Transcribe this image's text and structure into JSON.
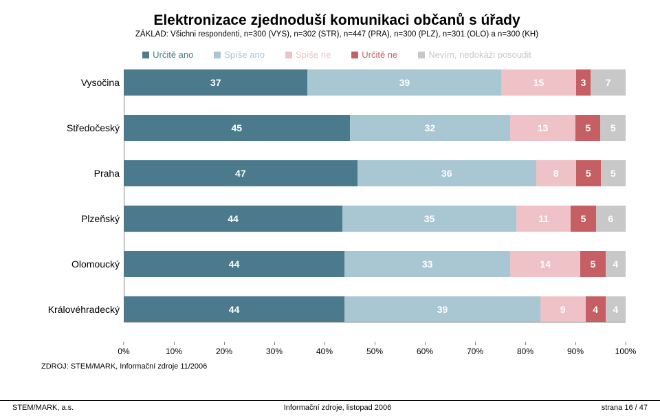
{
  "title": "Elektronizace zjednoduší komunikaci občanů s úřady",
  "subtitle": "ZÁKLAD: Všichni respondenti, n=300 (VYS), n=302 (STR), n=447 (PRA), n=300 (PLZ), n=301 (OLO) a n=300 (KH)",
  "legend": [
    {
      "label": "Určitě ano",
      "color": "#4a7a8c"
    },
    {
      "label": "Spíše ano",
      "color": "#a9c6d3"
    },
    {
      "label": "Spíše ne",
      "color": "#eec2c6"
    },
    {
      "label": "Určitě ne",
      "color": "#c55f63"
    },
    {
      "label": "Nevím, nedokáži posoudit",
      "color": "#c8c8c8"
    }
  ],
  "value_text_color": "#ffffff",
  "value_fontweight": 700,
  "background_color": "#ffffff",
  "axis_color": "#808080",
  "rows": [
    {
      "name": "Vysočina",
      "values": [
        37,
        39,
        15,
        3,
        7
      ],
      "show": [
        true,
        true,
        true,
        true,
        true
      ]
    },
    {
      "name": "Středočeský",
      "values": [
        45,
        32,
        13,
        5,
        5
      ],
      "show": [
        true,
        true,
        true,
        true,
        true
      ]
    },
    {
      "name": "Praha",
      "values": [
        47,
        36,
        8,
        5,
        5
      ],
      "show": [
        true,
        true,
        true,
        true,
        true
      ]
    },
    {
      "name": "Plzeňský",
      "values": [
        44,
        35,
        11,
        5,
        6
      ],
      "show": [
        true,
        true,
        true,
        true,
        true
      ]
    },
    {
      "name": "Olomoucký",
      "values": [
        44,
        33,
        14,
        5,
        4
      ],
      "show": [
        true,
        true,
        true,
        true,
        true
      ]
    },
    {
      "name": "Královéhradecký",
      "values": [
        44,
        39,
        9,
        4,
        4
      ],
      "show": [
        true,
        true,
        true,
        true,
        true
      ]
    }
  ],
  "x_ticks": [
    "0%",
    "10%",
    "20%",
    "30%",
    "40%",
    "50%",
    "60%",
    "70%",
    "80%",
    "90%",
    "100%"
  ],
  "source": "ZDROJ: STEM/MARK, Informační zdroje 11/2006",
  "footer": {
    "left": "STEM/MARK, a.s.",
    "center": "Informační zdroje, listopad 2006",
    "right": "strana 16 / 47"
  }
}
